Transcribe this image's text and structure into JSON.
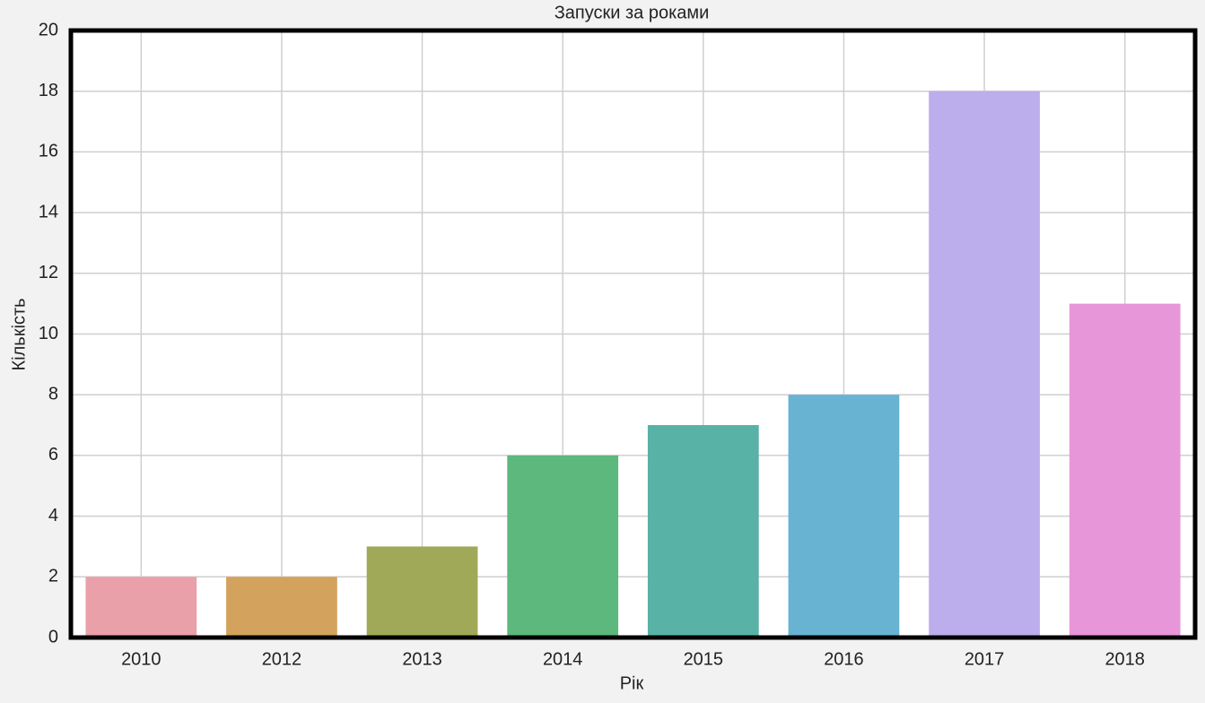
{
  "chart_data": {
    "type": "bar",
    "title": "Запуски за роками",
    "x_label": "Рік",
    "y_label": "Кількість",
    "categories": [
      "2010",
      "2012",
      "2013",
      "2014",
      "2015",
      "2016",
      "2017",
      "2018"
    ],
    "values": [
      2,
      2,
      3,
      6,
      7,
      8,
      18,
      11
    ],
    "colors": [
      "#eaa0a9",
      "#d3a25d",
      "#a0a957",
      "#5cb87c",
      "#58b2a6",
      "#68b2d2",
      "#bcaeec",
      "#e896da"
    ],
    "ylim": [
      0,
      20
    ],
    "yticks": [
      0,
      2,
      4,
      6,
      8,
      10,
      12,
      14,
      16,
      18,
      20
    ],
    "grid": true
  }
}
